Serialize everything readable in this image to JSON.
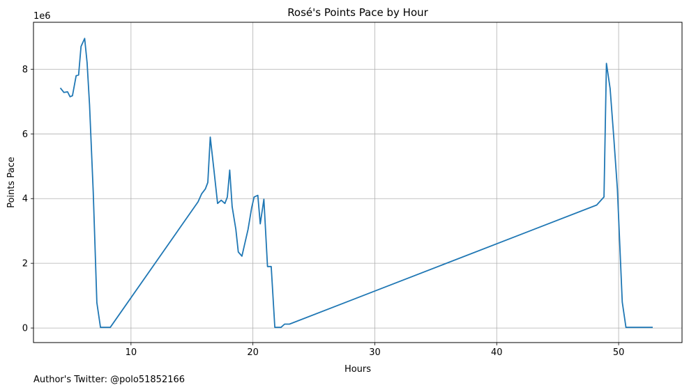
{
  "chart_data": {
    "type": "line",
    "title": "Rosé's Points Pace by Hour",
    "xlabel": "Hours",
    "ylabel": "Points Pace",
    "y_scale_label": "1e6",
    "xlim": [
      2,
      55.2
    ],
    "ylim": [
      -0.45,
      9.45
    ],
    "xticks": [
      10,
      20,
      30,
      40,
      50
    ],
    "yticks": [
      0,
      2,
      4,
      6,
      8
    ],
    "grid": true,
    "line_color": "#1f77b4",
    "series": [
      {
        "x": [
          4.2,
          4.5,
          4.8,
          5.0,
          5.2,
          5.5,
          5.7,
          5.9,
          6.2,
          6.4,
          6.6,
          6.9,
          7.2,
          7.5,
          7.8,
          8.3,
          15.5,
          15.8,
          16.1,
          16.3,
          16.5,
          16.8,
          17.1,
          17.4,
          17.7,
          17.9,
          18.1,
          18.3,
          18.6,
          18.8,
          19.1,
          19.3,
          19.6,
          19.9,
          20.1,
          20.4,
          20.6,
          20.9,
          21.2,
          21.5,
          21.8,
          22.3,
          22.6,
          23.0,
          48.2,
          48.8,
          49.0,
          49.3,
          49.6,
          49.9,
          50.1,
          50.3,
          50.6,
          52.8
        ],
        "y": [
          7.42,
          7.28,
          7.3,
          7.15,
          7.18,
          7.8,
          7.82,
          8.7,
          8.95,
          8.2,
          6.9,
          4.2,
          0.78,
          0.02,
          0.02,
          0.02,
          3.9,
          4.15,
          4.3,
          4.5,
          5.9,
          4.9,
          3.85,
          3.95,
          3.85,
          4.05,
          4.88,
          3.75,
          3.05,
          2.35,
          2.22,
          2.55,
          3.05,
          3.72,
          4.05,
          4.1,
          3.22,
          3.98,
          1.9,
          1.9,
          0.02,
          0.02,
          0.12,
          0.12,
          3.8,
          4.05,
          8.18,
          7.4,
          5.9,
          4.3,
          2.55,
          0.8,
          0.02,
          0.02
        ]
      }
    ]
  },
  "footer": {
    "text": "Author's Twitter: @polo51852166"
  }
}
